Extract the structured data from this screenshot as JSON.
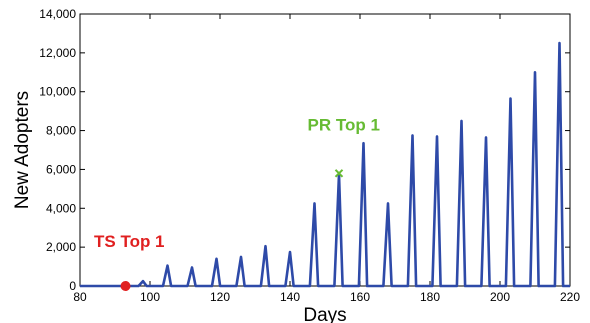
{
  "chart_data": {
    "type": "line",
    "title": "",
    "xlabel": "Days",
    "ylabel": "New Adopters",
    "xlim": [
      80,
      220
    ],
    "ylim": [
      0,
      14000
    ],
    "xticks": [
      80,
      100,
      120,
      140,
      160,
      180,
      200,
      220
    ],
    "yticks": [
      0,
      2000,
      4000,
      6000,
      8000,
      10000,
      12000,
      14000
    ],
    "xtick_labels": [
      "80",
      "100",
      "120",
      "140",
      "160",
      "180",
      "200",
      "220"
    ],
    "ytick_labels": [
      "0",
      "2,000",
      "4,000",
      "6,000",
      "8,000",
      "10,000",
      "12,000",
      "14,000"
    ],
    "grid": false,
    "series": [
      {
        "color": "#2e4aa8",
        "peaks": [
          {
            "x": 98,
            "y": 250
          },
          {
            "x": 105,
            "y": 1050
          },
          {
            "x": 112,
            "y": 950
          },
          {
            "x": 119,
            "y": 1400
          },
          {
            "x": 126,
            "y": 1500
          },
          {
            "x": 133,
            "y": 2050
          },
          {
            "x": 140,
            "y": 1750
          },
          {
            "x": 147,
            "y": 4250
          },
          {
            "x": 154,
            "y": 5750
          },
          {
            "x": 161,
            "y": 7350
          },
          {
            "x": 168,
            "y": 4250
          },
          {
            "x": 175,
            "y": 7750
          },
          {
            "x": 182,
            "y": 7700
          },
          {
            "x": 189,
            "y": 8500
          },
          {
            "x": 196,
            "y": 7650
          },
          {
            "x": 203,
            "y": 9650
          },
          {
            "x": 210,
            "y": 11000
          },
          {
            "x": 217,
            "y": 12500
          }
        ]
      }
    ],
    "annotations": [
      {
        "text": "TS Top 1",
        "x": 93,
        "y": 0,
        "color": "#e02020",
        "marker": "circle",
        "label_x": 84,
        "label_y": 2000
      },
      {
        "text": "PR Top 1",
        "x": 154,
        "y": 5800,
        "color": "#66bb33",
        "marker": "x",
        "label_x": 145,
        "label_y": 8000
      }
    ]
  }
}
